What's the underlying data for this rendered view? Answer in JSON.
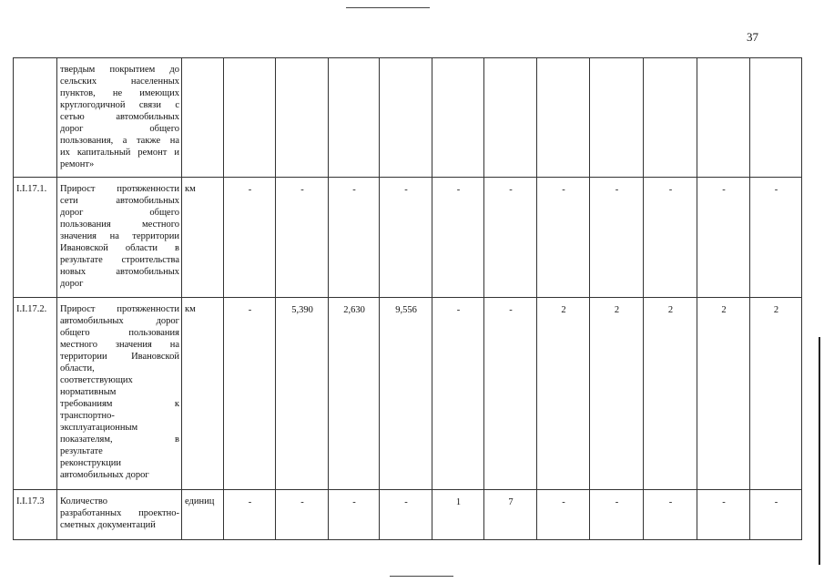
{
  "page_number": "37",
  "rows": [
    {
      "code": "",
      "lines": [
        "твердым покрытием до",
        "сельских населенных",
        "пунктов, не имеющих",
        "круглогодичной связи с",
        "сетью автомобильных",
        "дорог общего",
        "пользования, а также на",
        "их капитальный ремонт и",
        "ремонт»"
      ],
      "unit": "",
      "values": [
        "",
        "",
        "",
        "",
        "",
        "",
        "",
        "",
        "",
        "",
        ""
      ]
    },
    {
      "code": "I.I.17.1.",
      "lines": [
        "Прирост протяженности",
        "сети автомобильных",
        "дорог общего",
        "пользования местного",
        "значения на территории",
        "Ивановской области в",
        "результате строительства",
        "новых автомобильных",
        "дорог"
      ],
      "unit": "км",
      "values": [
        "-",
        "-",
        "-",
        "-",
        "-",
        "-",
        "-",
        "-",
        "-",
        "-",
        "-"
      ]
    },
    {
      "code": "I.I.17.2.",
      "lines": [
        "Прирост протяженности",
        "автомобильных дорог",
        "общего пользования",
        "местного значения на",
        "территории Ивановской",
        "области,",
        "соответствующих",
        "нормативным",
        "требованиям к",
        "транспортно-",
        "эксплуатационным",
        "показателям, в",
        "результате",
        "реконструкции",
        "автомобильных дорог"
      ],
      "unit": "км",
      "values": [
        "-",
        "5,390",
        "2,630",
        "9,556",
        "-",
        "-",
        "2",
        "2",
        "2",
        "2",
        "2"
      ]
    },
    {
      "code": "I.I.17.3",
      "lines": [
        "Количество",
        "разработанных проектно-",
        "сметных документаций"
      ],
      "unit": "единиц",
      "values": [
        "-",
        "-",
        "-",
        "-",
        "1",
        "7",
        "-",
        "-",
        "-",
        "-",
        "-"
      ]
    }
  ]
}
